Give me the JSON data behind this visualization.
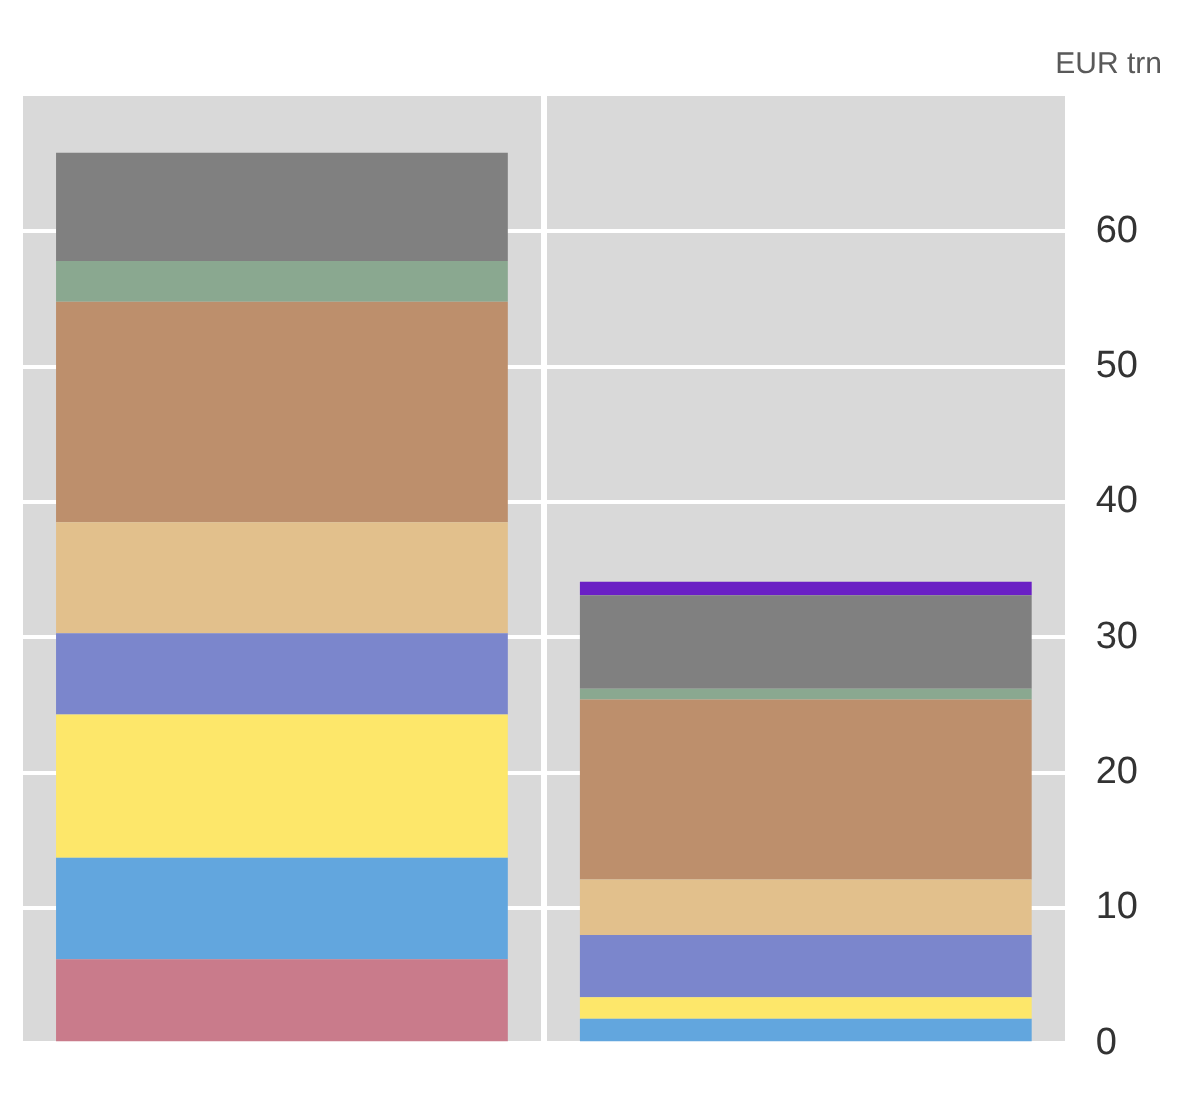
{
  "chart_data": {
    "type": "bar",
    "stacked": true,
    "categories": [
      null,
      null
    ],
    "ylabel": "EUR trn",
    "ylim": [
      0,
      70
    ],
    "yticks": [
      0,
      10,
      20,
      30,
      40,
      50,
      60
    ],
    "grid": true,
    "legend": false,
    "series": [
      {
        "color": "#c97b8b",
        "values": [
          6.2,
          0
        ]
      },
      {
        "color": "#62a6de",
        "values": [
          7.5,
          1.8
        ]
      },
      {
        "color": "#fde76a",
        "values": [
          10.6,
          1.6
        ]
      },
      {
        "color": "#7b86cc",
        "values": [
          6.0,
          4.6
        ]
      },
      {
        "color": "#e2c08c",
        "values": [
          8.2,
          4.1
        ]
      },
      {
        "color": "#bd8f6c",
        "values": [
          16.3,
          13.3
        ]
      },
      {
        "color": "#8aa890",
        "values": [
          3.0,
          0.8
        ]
      },
      {
        "color": "#808080",
        "values": [
          8.0,
          6.9
        ]
      },
      {
        "color": "#6a1fc4",
        "values": [
          null,
          1.0
        ]
      }
    ]
  }
}
